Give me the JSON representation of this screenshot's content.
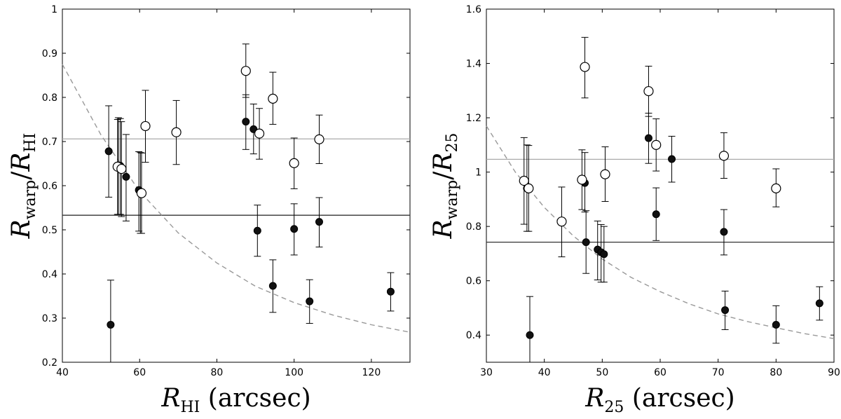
{
  "chart_data": [
    {
      "type": "scatter",
      "xlabel_main": "R",
      "xlabel_sub": "HI",
      "xlabel_unit": " (arcsec)",
      "ylabel_num_main": "R",
      "ylabel_num_sub": "warp",
      "ylabel_den_main": "R",
      "ylabel_den_sub": "HI",
      "xlim": [
        40,
        130
      ],
      "ylim": [
        0.2,
        1.0
      ],
      "xticks": [
        40,
        60,
        80,
        100,
        120
      ],
      "yticks": [
        0.2,
        0.3,
        0.4,
        0.5,
        0.6,
        0.7,
        0.8,
        0.9,
        1
      ],
      "hlines": [
        {
          "y": 0.706,
          "color": "#aaaaaa"
        },
        {
          "y": 0.533,
          "color": "#333333"
        }
      ],
      "fit_curve": {
        "style": "dashed",
        "color": "#999999",
        "points": [
          [
            40,
            0.875
          ],
          [
            50,
            0.715
          ],
          [
            60,
            0.587
          ],
          [
            70,
            0.493
          ],
          [
            80,
            0.425
          ],
          [
            90,
            0.372
          ],
          [
            100,
            0.335
          ],
          [
            110,
            0.307
          ],
          [
            120,
            0.285
          ],
          [
            130,
            0.268
          ]
        ]
      },
      "series": [
        {
          "marker": "filled",
          "points": [
            {
              "x": 52,
              "y": 0.678,
              "lo": 0.574,
              "hi": 0.781
            },
            {
              "x": 52.5,
              "y": 0.285,
              "lo": 0.2,
              "hi": 0.386
            },
            {
              "x": 54.5,
              "y": 0.645,
              "lo": 0.535,
              "hi": 0.754
            },
            {
              "x": 55,
              "y": 0.645,
              "lo": 0.535,
              "hi": 0.752
            },
            {
              "x": 56.5,
              "y": 0.62,
              "lo": 0.52,
              "hi": 0.716
            },
            {
              "x": 59.8,
              "y": 0.59,
              "lo": 0.497,
              "hi": 0.677
            },
            {
              "x": 60.2,
              "y": 0.585,
              "lo": 0.492,
              "hi": 0.675
            },
            {
              "x": 87.5,
              "y": 0.745,
              "lo": 0.682,
              "hi": 0.806
            },
            {
              "x": 89.5,
              "y": 0.728,
              "lo": 0.672,
              "hi": 0.785
            },
            {
              "x": 90.5,
              "y": 0.498,
              "lo": 0.44,
              "hi": 0.556
            },
            {
              "x": 94.5,
              "y": 0.373,
              "lo": 0.313,
              "hi": 0.432
            },
            {
              "x": 100,
              "y": 0.502,
              "lo": 0.443,
              "hi": 0.559
            },
            {
              "x": 104,
              "y": 0.338,
              "lo": 0.288,
              "hi": 0.387
            },
            {
              "x": 106.5,
              "y": 0.518,
              "lo": 0.461,
              "hi": 0.573
            },
            {
              "x": 125,
              "y": 0.36,
              "lo": 0.316,
              "hi": 0.403
            }
          ]
        },
        {
          "marker": "open",
          "points": [
            {
              "x": 54.3,
              "y": 0.643,
              "lo": 0.535,
              "hi": 0.75
            },
            {
              "x": 55.3,
              "y": 0.638,
              "lo": 0.53,
              "hi": 0.745
            },
            {
              "x": 60.5,
              "y": 0.583,
              "lo": 0.492,
              "hi": 0.674
            },
            {
              "x": 61.5,
              "y": 0.735,
              "lo": 0.653,
              "hi": 0.816
            },
            {
              "x": 69.5,
              "y": 0.721,
              "lo": 0.648,
              "hi": 0.793
            },
            {
              "x": 87.5,
              "y": 0.86,
              "lo": 0.8,
              "hi": 0.921
            },
            {
              "x": 91,
              "y": 0.718,
              "lo": 0.66,
              "hi": 0.775
            },
            {
              "x": 94.5,
              "y": 0.797,
              "lo": 0.739,
              "hi": 0.857
            },
            {
              "x": 100,
              "y": 0.651,
              "lo": 0.593,
              "hi": 0.708
            },
            {
              "x": 106.5,
              "y": 0.705,
              "lo": 0.65,
              "hi": 0.76
            }
          ]
        }
      ]
    },
    {
      "type": "scatter",
      "xlabel_main": "R",
      "xlabel_sub": "25",
      "xlabel_unit": " (arcsec)",
      "ylabel_num_main": "R",
      "ylabel_num_sub": "warp",
      "ylabel_den_main": "R",
      "ylabel_den_sub": "25",
      "xlim": [
        30,
        90
      ],
      "ylim": [
        0.3,
        1.6
      ],
      "xticks": [
        30,
        40,
        50,
        60,
        70,
        80,
        90
      ],
      "yticks": [
        0.4,
        0.6,
        0.8,
        1,
        1.2,
        1.4,
        1.6
      ],
      "hlines": [
        {
          "y": 1.047,
          "color": "#aaaaaa"
        },
        {
          "y": 0.742,
          "color": "#333333"
        }
      ],
      "fit_curve": {
        "style": "dashed",
        "color": "#999999",
        "points": [
          [
            30,
            1.17
          ],
          [
            35,
            1.0
          ],
          [
            40,
            0.87
          ],
          [
            45,
            0.765
          ],
          [
            50,
            0.68
          ],
          [
            55,
            0.612
          ],
          [
            60,
            0.56
          ],
          [
            65,
            0.515
          ],
          [
            70,
            0.478
          ],
          [
            75,
            0.45
          ],
          [
            80,
            0.427
          ],
          [
            85,
            0.405
          ],
          [
            90,
            0.387
          ]
        ]
      },
      "series": [
        {
          "marker": "filled",
          "points": [
            {
              "x": 37,
              "y": 0.94,
              "lo": 0.782,
              "hi": 1.1
            },
            {
              "x": 37.5,
              "y": 0.4,
              "lo": 0.3,
              "hi": 0.542
            },
            {
              "x": 47,
              "y": 0.96,
              "lo": 0.853,
              "hi": 1.072
            },
            {
              "x": 47.2,
              "y": 0.742,
              "lo": 0.627,
              "hi": 0.858
            },
            {
              "x": 49.2,
              "y": 0.715,
              "lo": 0.603,
              "hi": 0.82
            },
            {
              "x": 49.8,
              "y": 0.705,
              "lo": 0.595,
              "hi": 0.807
            },
            {
              "x": 50.3,
              "y": 0.698,
              "lo": 0.595,
              "hi": 0.8
            },
            {
              "x": 58,
              "y": 1.125,
              "lo": 1.032,
              "hi": 1.217
            },
            {
              "x": 59.3,
              "y": 0.845,
              "lo": 0.748,
              "hi": 0.942
            },
            {
              "x": 62,
              "y": 1.048,
              "lo": 0.963,
              "hi": 1.132
            },
            {
              "x": 71,
              "y": 0.78,
              "lo": 0.695,
              "hi": 0.862
            },
            {
              "x": 71.2,
              "y": 0.492,
              "lo": 0.42,
              "hi": 0.562
            },
            {
              "x": 80,
              "y": 0.438,
              "lo": 0.37,
              "hi": 0.508
            },
            {
              "x": 87.5,
              "y": 0.517,
              "lo": 0.455,
              "hi": 0.578
            }
          ]
        },
        {
          "marker": "open",
          "points": [
            {
              "x": 36.5,
              "y": 0.968,
              "lo": 0.808,
              "hi": 1.127
            },
            {
              "x": 37.3,
              "y": 0.94,
              "lo": 0.782,
              "hi": 1.098
            },
            {
              "x": 43,
              "y": 0.818,
              "lo": 0.688,
              "hi": 0.945
            },
            {
              "x": 46.5,
              "y": 0.972,
              "lo": 0.862,
              "hi": 1.082
            },
            {
              "x": 47,
              "y": 1.387,
              "lo": 1.273,
              "hi": 1.496
            },
            {
              "x": 50.5,
              "y": 0.992,
              "lo": 0.892,
              "hi": 1.093
            },
            {
              "x": 58,
              "y": 1.298,
              "lo": 1.205,
              "hi": 1.39
            },
            {
              "x": 59.3,
              "y": 1.1,
              "lo": 1.004,
              "hi": 1.196
            },
            {
              "x": 71,
              "y": 1.06,
              "lo": 0.977,
              "hi": 1.145
            },
            {
              "x": 80,
              "y": 0.94,
              "lo": 0.872,
              "hi": 1.012
            }
          ]
        }
      ]
    }
  ]
}
